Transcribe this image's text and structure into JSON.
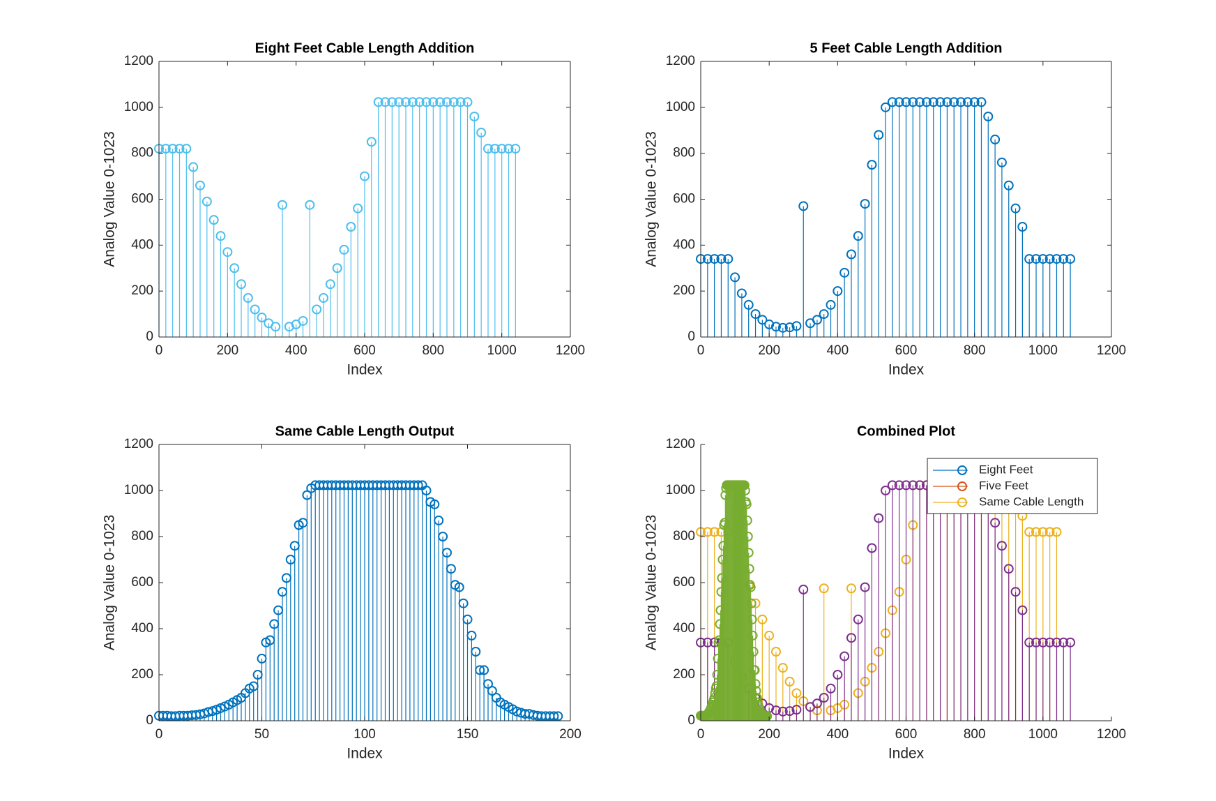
{
  "chart_data": [
    {
      "type": "stem",
      "title": "Eight Feet Cable Length Addition",
      "xlabel": "Index",
      "ylabel": "Analog Value 0-1023",
      "box": true,
      "xlim": [
        0,
        1200
      ],
      "xticks": [
        0,
        200,
        400,
        600,
        800,
        1000,
        1200
      ],
      "ylim": [
        0,
        1200
      ],
      "yticks": [
        0,
        200,
        400,
        600,
        800,
        1000,
        1200
      ],
      "series": [
        {
          "color": "#4dbeee",
          "x": [
            0,
            20,
            40,
            60,
            80,
            100,
            120,
            140,
            160,
            180,
            200,
            220,
            240,
            260,
            280,
            300,
            320,
            340,
            360,
            380,
            400,
            420,
            440,
            460,
            480,
            500,
            520,
            540,
            560,
            580,
            600,
            620,
            640,
            660,
            680,
            700,
            720,
            740,
            760,
            780,
            800,
            820,
            840,
            860,
            880,
            900,
            920,
            940,
            960,
            980,
            1000,
            1020,
            1040
          ],
          "values": [
            820,
            820,
            820,
            820,
            820,
            740,
            660,
            590,
            510,
            440,
            370,
            300,
            230,
            170,
            120,
            85,
            60,
            45,
            575,
            45,
            55,
            70,
            575,
            120,
            170,
            230,
            300,
            380,
            480,
            560,
            700,
            850,
            1023,
            1023,
            1023,
            1023,
            1023,
            1023,
            1023,
            1023,
            1023,
            1023,
            1023,
            1023,
            1023,
            1023,
            960,
            890,
            820,
            820,
            820,
            820,
            820
          ]
        }
      ]
    },
    {
      "type": "stem",
      "title": "5 Feet Cable Length Addition",
      "xlabel": "Index",
      "ylabel": "Analog Value 0-1023",
      "box": true,
      "xlim": [
        0,
        1200
      ],
      "xticks": [
        0,
        200,
        400,
        600,
        800,
        1000,
        1200
      ],
      "ylim": [
        0,
        1200
      ],
      "yticks": [
        0,
        200,
        400,
        600,
        800,
        1000,
        1200
      ],
      "series": [
        {
          "color": "#0072bd",
          "x": [
            0,
            20,
            40,
            60,
            80,
            100,
            120,
            140,
            160,
            180,
            200,
            220,
            240,
            260,
            280,
            300,
            320,
            340,
            360,
            380,
            400,
            420,
            440,
            460,
            480,
            500,
            520,
            540,
            560,
            580,
            600,
            620,
            640,
            660,
            680,
            700,
            720,
            740,
            760,
            780,
            800,
            820,
            840,
            860,
            880,
            900,
            920,
            940,
            960,
            980,
            1000,
            1020,
            1040,
            1060,
            1080
          ],
          "values": [
            340,
            340,
            340,
            340,
            340,
            260,
            190,
            140,
            100,
            75,
            55,
            45,
            40,
            42,
            48,
            570,
            60,
            75,
            100,
            140,
            200,
            280,
            360,
            440,
            580,
            750,
            880,
            1000,
            1023,
            1023,
            1023,
            1023,
            1023,
            1023,
            1023,
            1023,
            1023,
            1023,
            1023,
            1023,
            1023,
            1023,
            960,
            860,
            760,
            660,
            560,
            480,
            340,
            340,
            340,
            340,
            340,
            340,
            340
          ]
        }
      ]
    },
    {
      "type": "stem",
      "title": "Same Cable Length Output",
      "xlabel": "Index",
      "ylabel": "Analog Value 0-1023",
      "box": true,
      "xlim": [
        0,
        200
      ],
      "xticks": [
        0,
        50,
        100,
        150,
        200
      ],
      "ylim": [
        0,
        1200
      ],
      "yticks": [
        0,
        200,
        400,
        600,
        800,
        1000,
        1200
      ],
      "series": [
        {
          "color": "#0072bd",
          "x": [
            0,
            2,
            4,
            6,
            8,
            10,
            12,
            14,
            16,
            18,
            20,
            22,
            24,
            26,
            28,
            30,
            32,
            34,
            36,
            38,
            40,
            42,
            44,
            46,
            48,
            50,
            52,
            54,
            56,
            58,
            60,
            62,
            64,
            66,
            68,
            70,
            72,
            74,
            76,
            78,
            80,
            82,
            84,
            86,
            88,
            90,
            92,
            94,
            96,
            98,
            100,
            102,
            104,
            106,
            108,
            110,
            112,
            114,
            116,
            118,
            120,
            122,
            124,
            126,
            128,
            130,
            132,
            134,
            136,
            138,
            140,
            142,
            144,
            146,
            148,
            150,
            152,
            154,
            156,
            158,
            160,
            162,
            164,
            166,
            168,
            170,
            172,
            174,
            176,
            178,
            180,
            182,
            184,
            186,
            188,
            190,
            192,
            194
          ],
          "values": [
            22,
            22,
            22,
            20,
            20,
            22,
            22,
            22,
            24,
            25,
            28,
            32,
            38,
            42,
            48,
            55,
            62,
            70,
            80,
            90,
            100,
            120,
            140,
            150,
            200,
            270,
            340,
            350,
            420,
            480,
            560,
            620,
            700,
            760,
            850,
            860,
            980,
            1010,
            1023,
            1023,
            1023,
            1023,
            1023,
            1023,
            1023,
            1023,
            1023,
            1023,
            1023,
            1023,
            1023,
            1023,
            1023,
            1023,
            1023,
            1023,
            1023,
            1023,
            1023,
            1023,
            1023,
            1023,
            1023,
            1023,
            1023,
            1000,
            950,
            940,
            870,
            800,
            730,
            660,
            590,
            580,
            510,
            440,
            370,
            300,
            220,
            220,
            160,
            130,
            100,
            80,
            70,
            60,
            50,
            40,
            35,
            30,
            30,
            25,
            22,
            20,
            20,
            20,
            20,
            20
          ]
        }
      ]
    },
    {
      "type": "stem",
      "title": "Combined Plot",
      "xlabel": "Index",
      "ylabel": "Analog Value 0-1023",
      "box": false,
      "legend": "northeast",
      "xlim": [
        0,
        1200
      ],
      "xticks": [
        0,
        200,
        400,
        600,
        800,
        1000,
        1200
      ],
      "ylim": [
        0,
        1200
      ],
      "yticks": [
        0,
        200,
        400,
        600,
        800,
        1000,
        1200
      ],
      "series": [
        {
          "name": "Eight Feet",
          "color": "#edb120",
          "legend_color": "#0072bd",
          "x": [
            0,
            20,
            40,
            60,
            80,
            100,
            120,
            140,
            160,
            180,
            200,
            220,
            240,
            260,
            280,
            300,
            320,
            340,
            360,
            380,
            400,
            420,
            440,
            460,
            480,
            500,
            520,
            540,
            560,
            580,
            600,
            620,
            640,
            660,
            680,
            700,
            720,
            740,
            760,
            780,
            800,
            820,
            840,
            860,
            880,
            900,
            920,
            940,
            960,
            980,
            1000,
            1020,
            1040
          ],
          "values": [
            820,
            820,
            820,
            820,
            820,
            740,
            660,
            590,
            510,
            440,
            370,
            300,
            230,
            170,
            120,
            85,
            60,
            45,
            575,
            45,
            55,
            70,
            575,
            120,
            170,
            230,
            300,
            380,
            480,
            560,
            700,
            850,
            1023,
            1023,
            1023,
            1023,
            1023,
            1023,
            1023,
            1023,
            1023,
            1023,
            1023,
            1023,
            1023,
            1023,
            960,
            890,
            820,
            820,
            820,
            820,
            820
          ]
        },
        {
          "name": "Five Feet",
          "color": "#7e2f8e",
          "legend_color": "#d95319",
          "x": [
            0,
            20,
            40,
            60,
            80,
            100,
            120,
            140,
            160,
            180,
            200,
            220,
            240,
            260,
            280,
            300,
            320,
            340,
            360,
            380,
            400,
            420,
            440,
            460,
            480,
            500,
            520,
            540,
            560,
            580,
            600,
            620,
            640,
            660,
            680,
            700,
            720,
            740,
            760,
            780,
            800,
            820,
            840,
            860,
            880,
            900,
            920,
            940,
            960,
            980,
            1000,
            1020,
            1040,
            1060,
            1080
          ],
          "values": [
            340,
            340,
            340,
            340,
            340,
            260,
            190,
            140,
            100,
            75,
            55,
            45,
            40,
            42,
            48,
            570,
            60,
            75,
            100,
            140,
            200,
            280,
            360,
            440,
            580,
            750,
            880,
            1000,
            1023,
            1023,
            1023,
            1023,
            1023,
            1023,
            1023,
            1023,
            1023,
            1023,
            1023,
            1023,
            1023,
            1023,
            960,
            860,
            760,
            660,
            560,
            480,
            340,
            340,
            340,
            340,
            340,
            340,
            340
          ]
        },
        {
          "name": "Same Cable Length",
          "color": "#77ac30",
          "legend_color": "#edb120",
          "x": [
            0,
            2,
            4,
            6,
            8,
            10,
            12,
            14,
            16,
            18,
            20,
            22,
            24,
            26,
            28,
            30,
            32,
            34,
            36,
            38,
            40,
            42,
            44,
            46,
            48,
            50,
            52,
            54,
            56,
            58,
            60,
            62,
            64,
            66,
            68,
            70,
            72,
            74,
            76,
            78,
            80,
            82,
            84,
            86,
            88,
            90,
            92,
            94,
            96,
            98,
            100,
            102,
            104,
            106,
            108,
            110,
            112,
            114,
            116,
            118,
            120,
            122,
            124,
            126,
            128,
            130,
            132,
            134,
            136,
            138,
            140,
            142,
            144,
            146,
            148,
            150,
            152,
            154,
            156,
            158,
            160,
            162,
            164,
            166,
            168,
            170,
            172,
            174,
            176,
            178,
            180,
            182,
            184,
            186,
            188,
            190,
            192,
            194
          ],
          "values": [
            22,
            22,
            22,
            20,
            20,
            22,
            22,
            22,
            24,
            25,
            28,
            32,
            38,
            42,
            48,
            55,
            62,
            70,
            80,
            90,
            100,
            120,
            140,
            150,
            200,
            270,
            340,
            350,
            420,
            480,
            560,
            620,
            700,
            760,
            850,
            860,
            980,
            1010,
            1023,
            1023,
            1023,
            1023,
            1023,
            1023,
            1023,
            1023,
            1023,
            1023,
            1023,
            1023,
            1023,
            1023,
            1023,
            1023,
            1023,
            1023,
            1023,
            1023,
            1023,
            1023,
            1023,
            1023,
            1023,
            1023,
            1023,
            1000,
            950,
            940,
            870,
            800,
            730,
            660,
            590,
            580,
            510,
            440,
            370,
            300,
            220,
            220,
            160,
            130,
            100,
            80,
            70,
            60,
            50,
            40,
            35,
            30,
            30,
            25,
            22,
            20,
            20,
            20,
            20,
            20
          ]
        }
      ]
    }
  ]
}
